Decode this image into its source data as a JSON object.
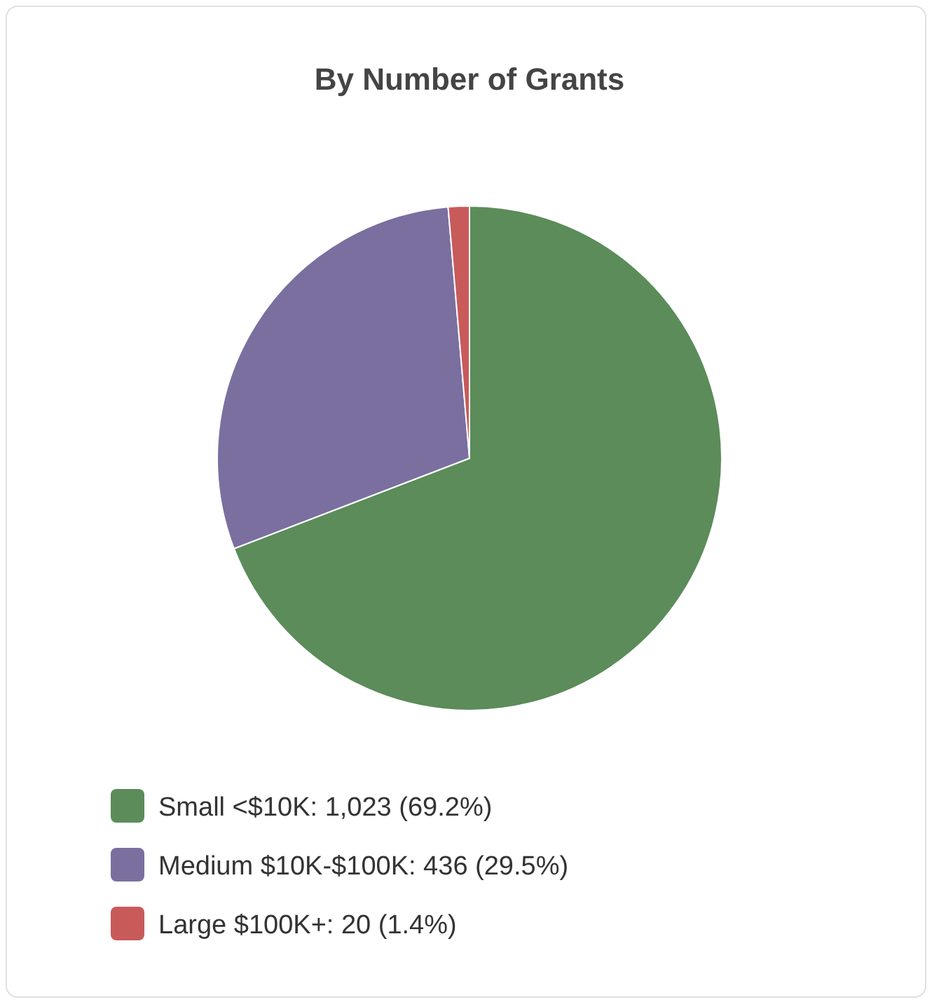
{
  "chart_data": {
    "type": "pie",
    "title": "By Number of Grants",
    "categories": [
      "Small <$10K: 1,023 (69.2%)",
      "Medium $10K-$100K: 436 (29.5%)",
      "Large $100K+: 20 (1.4%)"
    ],
    "values": [
      1023,
      436,
      20
    ],
    "colors": [
      "#5b8c5a",
      "#7b6fa0",
      "#c85a5a"
    ],
    "legend": "bottom"
  }
}
